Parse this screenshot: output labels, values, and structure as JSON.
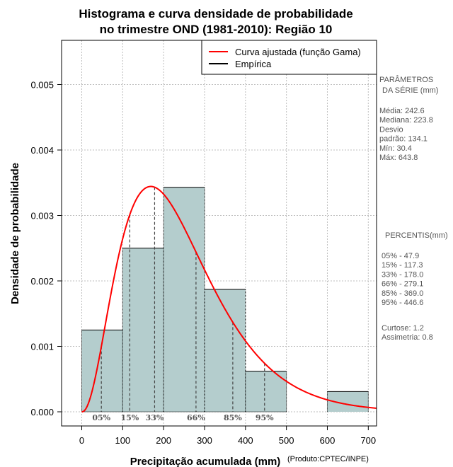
{
  "chart_data": {
    "type": "bar",
    "title_line1": "Histograma e curva densidade de probabilidade",
    "title_line2": "no trimestre OND (1981-2010): Região 10",
    "xlabel": "Precipitação acumulada (mm)",
    "ylabel": "Densidade de probabilidade",
    "credit": "(Produto:CPTEC/INPE)",
    "xlim": [
      -25,
      720
    ],
    "ylim": [
      -0.0002,
      0.0056
    ],
    "x_ticks": [
      0,
      100,
      200,
      300,
      400,
      500,
      600,
      700
    ],
    "y_ticks": [
      0.0,
      0.001,
      0.002,
      0.003,
      0.004,
      0.005
    ],
    "y_tick_labels": [
      "0.000",
      "0.001",
      "0.002",
      "0.003",
      "0.004",
      "0.005"
    ],
    "grid": true,
    "bins": [
      {
        "from": 0,
        "to": 100,
        "density": 0.00125
      },
      {
        "from": 100,
        "to": 200,
        "density": 0.0025
      },
      {
        "from": 200,
        "to": 300,
        "density": 0.00343
      },
      {
        "from": 300,
        "to": 400,
        "density": 0.00187
      },
      {
        "from": 400,
        "to": 500,
        "density": 0.00062
      },
      {
        "from": 500,
        "to": 600,
        "density": 0.0
      },
      {
        "from": 600,
        "to": 700,
        "density": 0.00031
      }
    ],
    "bar_color": "#b4cdcd",
    "curve": {
      "name": "Curva ajustada (função Gama)",
      "color": "#ff0000",
      "gamma_shape": 3.28,
      "gamma_scale": 74.0,
      "x_range": [
        0,
        720
      ]
    },
    "percentiles": [
      {
        "label": "05%",
        "value": 47.9
      },
      {
        "label": "15%",
        "value": 117.3
      },
      {
        "label": "33%",
        "value": 178.0
      },
      {
        "label": "66%",
        "value": 279.1
      },
      {
        "label": "85%",
        "value": 369.0
      },
      {
        "label": "95%",
        "value": 446.6
      }
    ],
    "legend": {
      "position": "top-right",
      "entries": [
        {
          "label": "Curva ajustada (função Gama)",
          "color": "#ff0000"
        },
        {
          "label": "Empírica",
          "color": "#000000"
        }
      ]
    }
  },
  "side_panel": {
    "params_title_1": "PARÂMETROS",
    "params_title_2": "DA SÉRIE (mm)",
    "stats": [
      "Média:  242.6",
      "Mediana:  223.8",
      "Desvio",
      "padrão:  134.1",
      "Mín:  30.4",
      "Máx:  643.8"
    ],
    "percentis_title": "PERCENTIS(mm)",
    "percentis": [
      "05% -  47.9",
      "15% -  117.3",
      "33% -  178.0",
      "66% -  279.1",
      "85% -  369.0",
      "95% -  446.6"
    ],
    "shape_stats": [
      "Curtose:  1.2",
      "Assimetria:  0.8"
    ]
  }
}
